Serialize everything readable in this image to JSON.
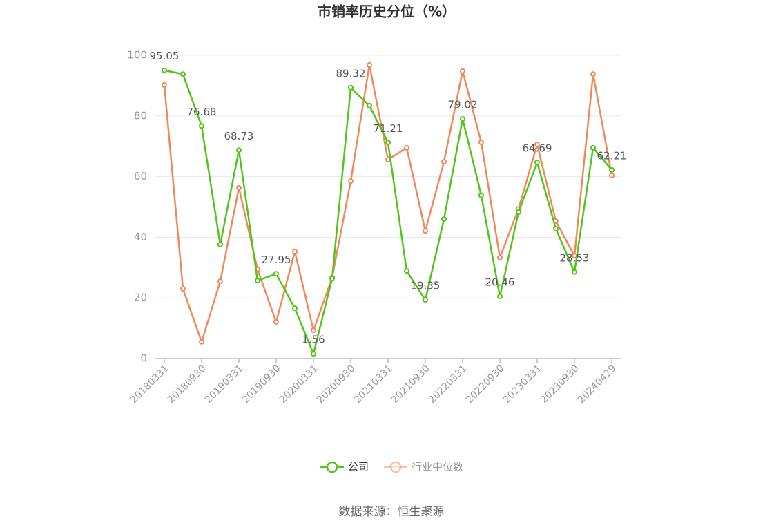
{
  "chart_data": {
    "type": "line",
    "title": "市销率历史分位（%）",
    "categories": [
      "20180331",
      null,
      "20180930",
      null,
      "20190331",
      null,
      "20190930",
      null,
      "20200331",
      null,
      "20200930",
      null,
      "20210331",
      null,
      "20210930",
      null,
      "20220331",
      null,
      "20220930",
      null,
      "20230331",
      null,
      "20230930",
      null,
      "20240429"
    ],
    "series": [
      {
        "name": "公司",
        "color": "#52c41a",
        "data_labels": true,
        "values": [
          95.05,
          93.8,
          76.68,
          37.6,
          68.73,
          25.7,
          27.95,
          16.6,
          1.56,
          26.4,
          89.32,
          83.4,
          71.21,
          28.9,
          19.35,
          46.0,
          79.02,
          53.8,
          20.46,
          48.3,
          64.69,
          42.8,
          28.53,
          69.5,
          62.21
        ]
      },
      {
        "name": "行业中位数",
        "color": "#f0895a",
        "data_labels": false,
        "values": [
          90.2,
          23.0,
          5.5,
          25.5,
          56.3,
          29.4,
          12.1,
          35.3,
          9.3,
          26.7,
          58.5,
          96.8,
          65.6,
          69.5,
          42.1,
          64.9,
          94.8,
          71.3,
          33.3,
          49.4,
          70.6,
          45.3,
          33.9,
          93.8,
          60.4
        ]
      }
    ],
    "ylim": [
      0,
      100
    ],
    "yticks": [
      0,
      20,
      40,
      60,
      80,
      100
    ],
    "grid": true,
    "source": "数据来源：恒生聚源"
  }
}
